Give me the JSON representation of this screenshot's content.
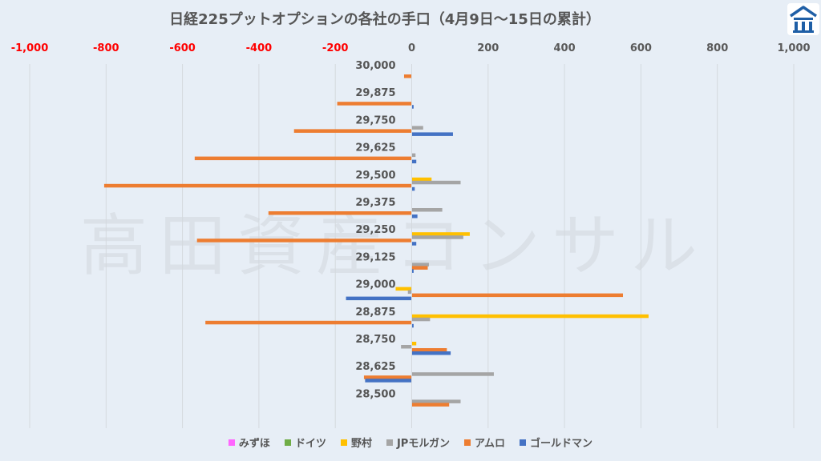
{
  "watermark": "高田資産コンサル",
  "chart_data": {
    "type": "bar",
    "orientation": "horizontal",
    "title": "日経225プットオプションの各社の手口（4月9日～15日の累計）",
    "categories": [
      "30,000",
      "29,875",
      "29,750",
      "29,625",
      "29,500",
      "29,375",
      "29,250",
      "29,125",
      "29,000",
      "28,875",
      "28,750",
      "28,625",
      "28,500"
    ],
    "xlim": [
      -1000,
      1000
    ],
    "xticks": [
      -1000,
      -800,
      -600,
      -400,
      -200,
      0,
      200,
      400,
      600,
      800,
      1000
    ],
    "xtick_labels": [
      "-1,000",
      "-800",
      "-600",
      "-400",
      "-200",
      "0",
      "200",
      "400",
      "600",
      "800",
      "1,000"
    ],
    "negative_tick_color": "#ff0000",
    "positive_tick_color": "#595959",
    "grid": true,
    "legend_position": "bottom",
    "series": [
      {
        "name": "みずほ",
        "color": "#ff66ff",
        "values": [
          0,
          0,
          0,
          0,
          0,
          0,
          0,
          0,
          0,
          0,
          0,
          0,
          0
        ]
      },
      {
        "name": "ドイツ",
        "color": "#70ad47",
        "values": [
          0,
          0,
          0,
          0,
          0,
          0,
          0,
          0,
          0,
          0,
          0,
          0,
          0
        ]
      },
      {
        "name": "野村",
        "color": "#ffc000",
        "values": [
          0,
          0,
          0,
          0,
          52,
          0,
          152,
          0,
          -42,
          620,
          12,
          0,
          0
        ]
      },
      {
        "name": "JPモルガン",
        "color": "#a5a5a5",
        "values": [
          0,
          0,
          30,
          10,
          128,
          80,
          135,
          45,
          -10,
          48,
          -28,
          215,
          128
        ]
      },
      {
        "name": "アムロ",
        "color": "#ed7d31",
        "values": [
          -20,
          -195,
          -308,
          -568,
          -805,
          -375,
          -562,
          42,
          553,
          -540,
          92,
          -125,
          98
        ]
      },
      {
        "name": "ゴールドマン",
        "color": "#4472c4",
        "values": [
          0,
          5,
          108,
          12,
          8,
          15,
          12,
          5,
          -172,
          5,
          102,
          -122,
          0
        ]
      }
    ]
  }
}
